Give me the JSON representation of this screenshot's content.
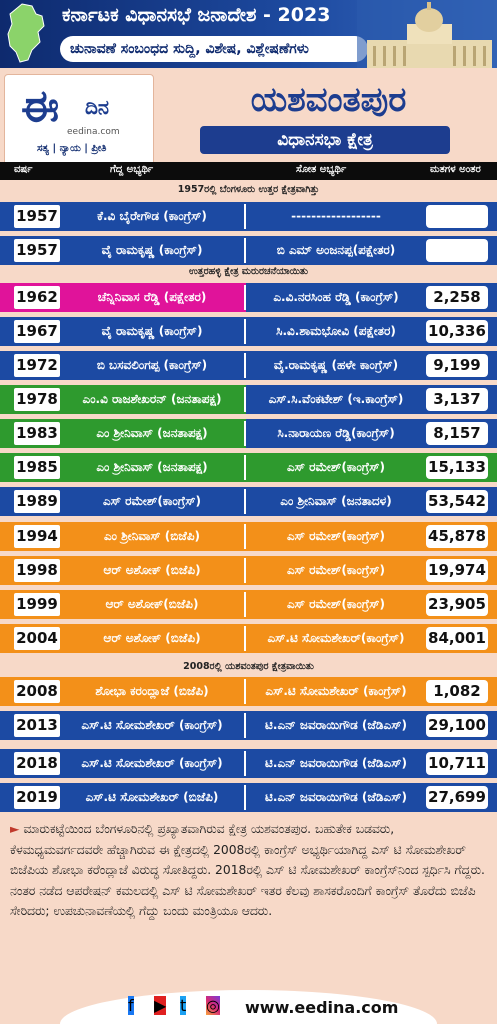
{
  "banner": {
    "title": "ಕರ್ನಾಟಕ ವಿಧಾನಸಭೆ ಜನಾದೇಶ - 2023",
    "subtitle": "ಚುನಾವಣೆ ಸಂಬಂಧದ ಸುದ್ದಿ, ವಿಶೇಷ, ವಿಶ್ಲೇಷಣೆಗಳು"
  },
  "logo": {
    "name": "ದಿನ",
    "url": "eedina.com",
    "tagline": "ಸತ್ಯ | ನ್ಯಾಯ | ಪ್ರೀತಿ"
  },
  "constituency": {
    "name": "ಯಶವಂತಪುರ",
    "label": "ವಿಧಾನಸಭಾ ಕ್ಷೇತ್ರ"
  },
  "columns": {
    "year": "ವರ್ಷ",
    "winner": "ಗೆದ್ದ ಅಭ್ಯರ್ಥಿ",
    "loser": "ಸೋತ ಅಭ್ಯರ್ಥಿ",
    "margin": "ಮತಗಳ ಅಂತರ"
  },
  "notes": {
    "n1957": "1957ರಲ್ಲಿ ಬೆಂಗಳೂರು ಉತ್ತರ ಕ್ಷೇತ್ರವಾಗಿತ್ತು",
    "n1962": "ಉತ್ತರಹಳ್ಳಿ ಕ್ಷೇತ್ರ ಮರುರಚನೆಯಾಯಿತು",
    "n2008": "2008ರಲ್ಲಿ ಯಶವಂತಪುರ ಕ್ಷೇತ್ರವಾಯಿತು"
  },
  "colors": {
    "congress": "#1c4aa3",
    "independent": "#e0139a",
    "janatapaksha": "#2e9a2e",
    "icongress": "#1c4aa3",
    "bjp": "#f39019",
    "janatadal": "#2e9a2e",
    "jds": "#1c4aa3"
  },
  "rows": [
    {
      "year": "1957",
      "winner": "ಕೆ.ವಿ ಬೈರೇಗೌಡ (ಕಾಂಗ್ರೆಸ್)",
      "loser": "------------------",
      "margin": "",
      "wc": "#1c4aa3",
      "lc": "#1c4aa3"
    },
    {
      "year": "1957",
      "winner": "ವೈ ರಾಮಕೃಷ್ಣ (ಕಾಂಗ್ರೆಸ್)",
      "loser": "ಬಿ ಎಮ್ ಅಂಜನಪ್ಪ(ಪಕ್ಷೇತರ)",
      "margin": "",
      "wc": "#1c4aa3",
      "lc": "#1c4aa3"
    },
    {
      "year": "1962",
      "winner": "ಚೆನ್ನಿನಿವಾಸ ರೆಡ್ಡಿ (ಪಕ್ಷೇತರ)",
      "loser": "ಎ.ವಿ.ನರಸಿಂಹ ರೆಡ್ಡಿ (ಕಾಂಗ್ರೆಸ್)",
      "margin": "2,258",
      "wc": "#e0139a",
      "lc": "#1c4aa3"
    },
    {
      "year": "1967",
      "winner": "ವೈ ರಾಮಕೃಷ್ಣ (ಕಾಂಗ್ರೆಸ್)",
      "loser": "ಸಿ.ವಿ.ಶಾಮಭೋವಿ (ಪಕ್ಷೇತರ)",
      "margin": "10,336",
      "wc": "#1c4aa3",
      "lc": "#1c4aa3"
    },
    {
      "year": "1972",
      "winner": "ಬಿ ಬಸವಲಿಂಗಪ್ಪ (ಕಾಂಗ್ರೆಸ್)",
      "loser": "ವೈ.ರಾಮಕೃಷ್ಣ (ಹಳೇ ಕಾಂಗ್ರೆಸ್)",
      "margin": "9,199",
      "wc": "#1c4aa3",
      "lc": "#1c4aa3"
    },
    {
      "year": "1978",
      "winner": "ಎಂ.ವಿ ರಾಜಶೇಖರನ್ (ಜನತಾಪಕ್ಷ)",
      "loser": "ಎಸ್.ಸಿ.ವೆಂಕಟೇಶ್ (ಇ.ಕಾಂಗ್ರೆಸ್)",
      "margin": "3,137",
      "wc": "#2e9a2e",
      "lc": "#1c4aa3"
    },
    {
      "year": "1983",
      "winner": "ಎಂ ಶ್ರೀನಿವಾಸ್ (ಜನತಾಪಕ್ಷ)",
      "loser": "ಸಿ.ನಾರಾಯಣ ರೆಡ್ಡಿ(ಕಾಂಗ್ರೆಸ್)",
      "margin": "8,157",
      "wc": "#2e9a2e",
      "lc": "#1c4aa3"
    },
    {
      "year": "1985",
      "winner": "ಎಂ ಶ್ರೀನಿವಾಸ್ (ಜನತಾಪಕ್ಷ)",
      "loser": "ಎಸ್ ರಮೇಶ್(ಕಾಂಗ್ರೆಸ್)",
      "margin": "15,133",
      "wc": "#2e9a2e",
      "lc": "#2e9a2e"
    },
    {
      "year": "1989",
      "winner": "ಎಸ್ ರಮೇಶ್(ಕಾಂಗ್ರೆಸ್)",
      "loser": "ಎಂ ಶ್ರೀನಿವಾಸ್ (ಜನತಾದಳ)",
      "margin": "53,542",
      "wc": "#1c4aa3",
      "lc": "#1c4aa3"
    },
    {
      "year": "1994",
      "winner": "ಎಂ ಶ್ರೀನಿವಾಸ್ (ಬಿಜೆಪಿ)",
      "loser": "ಎಸ್ ರಮೇಶ್(ಕಾಂಗ್ರೆಸ್)",
      "margin": "45,878",
      "wc": "#f39019",
      "lc": "#f39019"
    },
    {
      "year": "1998",
      "winner": "ಆರ್ ಅಶೋಕ್ (ಬಿಜೆಪಿ)",
      "loser": "ಎಸ್ ರಮೇಶ್(ಕಾಂಗ್ರೆಸ್)",
      "margin": "19,974",
      "wc": "#f39019",
      "lc": "#f39019"
    },
    {
      "year": "1999",
      "winner": "ಆರ್ ಅಶೋಕ್(ಬಿಜೆಪಿ)",
      "loser": "ಎಸ್ ರಮೇಶ್(ಕಾಂಗ್ರೆಸ್)",
      "margin": "23,905",
      "wc": "#f39019",
      "lc": "#f39019"
    },
    {
      "year": "2004",
      "winner": "ಆರ್ ಅಶೋಕ್ (ಬಿಜೆಪಿ)",
      "loser": "ಎಸ್.ಟಿ ಸೋಮಶೇಖರ್(ಕಾಂಗ್ರೆಸ್)",
      "margin": "84,001",
      "wc": "#f39019",
      "lc": "#f39019"
    },
    {
      "year": "2008",
      "winner": "ಶೋಭಾ ಕರಂದ್ಲಾಜೆ (ಬಿಜೆಪಿ)",
      "loser": "ಎಸ್.ಟಿ ಸೋಮಶೇಖರ್ (ಕಾಂಗ್ರೆಸ್)",
      "margin": "1,082",
      "wc": "#f39019",
      "lc": "#f39019"
    },
    {
      "year": "2013",
      "winner": "ಎಸ್.ಟಿ ಸೋಮಶೇಖರ್ (ಕಾಂಗ್ರೆಸ್)",
      "loser": "ಟಿ.ಎನ್ ಜವರಾಯಿಗೌಡ (ಜೆಡಿಎಸ್)",
      "margin": "29,100",
      "wc": "#1c4aa3",
      "lc": "#1c4aa3"
    },
    {
      "year": "2018",
      "winner": "ಎಸ್.ಟಿ ಸೋಮಶೇಖರ್ (ಕಾಂಗ್ರೆಸ್)",
      "loser": "ಟಿ.ಎನ್ ಜವರಾಯಿಗೌಡ (ಜೆಡಿಎಸ್)",
      "margin": "10,711",
      "wc": "#1c4aa3",
      "lc": "#1c4aa3"
    },
    {
      "year": "2019",
      "winner": "ಎಸ್.ಟಿ ಸೋಮಶೇಖರ್ (ಬಿಜೆಪಿ)",
      "loser": "ಟಿ.ಎನ್ ಜವರಾಯಿಗೌಡ (ಜೆಡಿಎಸ್)",
      "margin": "27,699",
      "wc": "#1c4aa3",
      "lc": "#1c4aa3"
    }
  ],
  "description": "ಮಾರುಕಟ್ಟೆಯಿಂದ ಬೆಂಗಳೂರಿನಲ್ಲಿ ಪ್ರಖ್ಯಾತವಾಗಿರುವ ಕ್ಷೇತ್ರ ಯಶವಂತಪುರ. ಬಹುತೇಕ ಬಡವರು, ಕೆಳಮಧ್ಯಮವರ್ಗದವರೇ ಹೆಚ್ಚಾಗಿರುವ ಈ ಕ್ಷೇತ್ರದಲ್ಲಿ 2008ರಲ್ಲಿ ಕಾಂಗ್ರೆಸ್ ಅಭ್ಯರ್ಥಿಯಾಗಿದ್ದ ಎಸ್ ಟಿ ಸೋಮಶೇಖರ್ ಬಿಜೆಪಿಯ ಶೋಭಾ ಕರೆಂದ್ಲಾಜೆ ವಿರುದ್ಧ ಸೋತಿದ್ದರು. 2018ರಲ್ಲಿ ಎಸ್ ಟಿ ಸೋಮಶೇಖರ್ ಕಾಂಗ್ರೆಸ್‌ನಿಂದ ಸ್ಪರ್ಧಿಸಿ ಗೆದ್ದರು. ನಂತರ ನಡೆದ ಆಪರೇಷನ್ ಕಮಲದಲ್ಲಿ ಎಸ್ ಟಿ ಸೋಮಶೇಖರ್ ಇತರ ಕೆಲವು ಶಾಸಕರೊಂದಿಗೆ ಕಾಂಗ್ರೆಸ್ ತೊರೆದು ಬಿಜೆಪಿ ಸೇರಿದರು; ಉಪಚುನಾವಣೆಯಲ್ಲಿ ಗೆದ್ದು ಬಂದು ಮಂತ್ರಿಯೂ ಆದರು.",
  "footer": {
    "site": "www.eedina.com",
    "icons": [
      "facebook-icon",
      "youtube-icon",
      "twitter-icon",
      "instagram-icon"
    ]
  }
}
